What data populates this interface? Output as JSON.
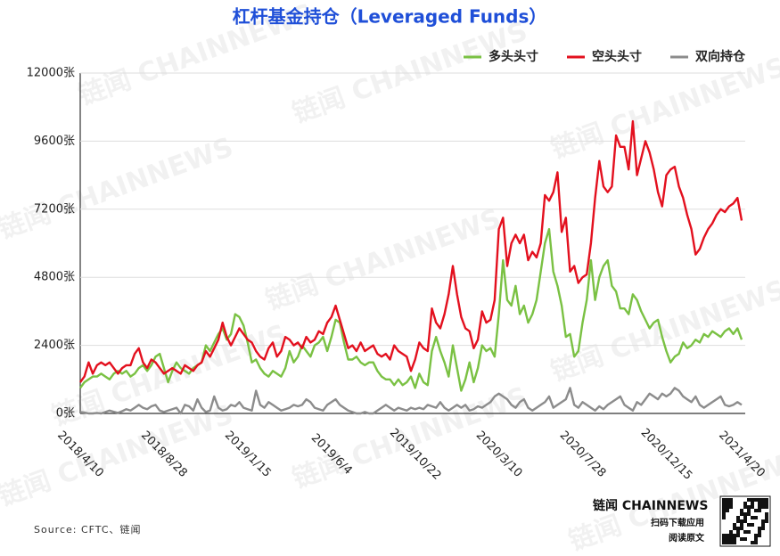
{
  "chart_data": {
    "type": "line",
    "title": "杠杆基金持仓（Leveraged Funds）",
    "source": "Source: CFTC、链闻",
    "brand": "链闻 CHAINNEWS",
    "brand_lines": [
      "扫码下载应用",
      "阅读原文"
    ],
    "watermark": "链闻 CHAINNEWS",
    "categories": [
      "2018/4/10",
      null,
      null,
      null,
      null,
      null,
      null,
      null,
      null,
      null,
      null,
      null,
      null,
      null,
      null,
      null,
      null,
      null,
      null,
      null,
      "2018/8/28",
      null,
      null,
      null,
      null,
      null,
      null,
      null,
      null,
      null,
      null,
      null,
      null,
      null,
      null,
      null,
      null,
      null,
      null,
      null,
      "2019/1/15",
      null,
      null,
      null,
      null,
      null,
      null,
      null,
      null,
      null,
      null,
      null,
      null,
      null,
      null,
      null,
      null,
      null,
      null,
      null,
      "2019/6/4",
      null,
      null,
      null,
      null,
      null,
      null,
      null,
      null,
      null,
      null,
      null,
      null,
      null,
      null,
      null,
      null,
      null,
      null,
      null,
      "2019/10/22",
      null,
      null,
      null,
      null,
      null,
      null,
      null,
      null,
      null,
      null,
      null,
      null,
      null,
      null,
      null,
      null,
      null,
      null,
      null,
      "2020/3/10",
      null,
      null,
      null,
      null,
      null,
      null,
      null,
      null,
      null,
      null,
      null,
      null,
      null,
      null,
      null,
      null,
      null,
      null,
      null,
      "2020/7/28",
      null,
      null,
      null,
      null,
      null,
      null,
      null,
      null,
      null,
      null,
      null,
      null,
      null,
      null,
      null,
      null,
      null,
      null,
      null,
      "2020/12/15",
      null,
      null,
      null,
      null,
      null,
      null,
      null,
      null,
      null,
      null,
      null,
      null,
      null,
      null,
      null,
      null,
      null,
      "2021/4/20"
    ],
    "series": [
      {
        "name": "多头头寸",
        "color": "#7ac143",
        "values": [
          900,
          1100,
          1200,
          1300,
          1300,
          1400,
          1300,
          1200,
          1400,
          1500,
          1400,
          1500,
          1300,
          1400,
          1600,
          1700,
          1500,
          1700,
          2000,
          2100,
          1600,
          1100,
          1500,
          1800,
          1600,
          1500,
          1400,
          1600,
          1700,
          1800,
          2400,
          2200,
          2500,
          2800,
          3000,
          2600,
          2800,
          3500,
          3400,
          3100,
          2500,
          1800,
          1900,
          1600,
          1400,
          1300,
          1500,
          1400,
          1300,
          1600,
          2200,
          1800,
          2000,
          2400,
          2200,
          2000,
          2400,
          2500,
          2700,
          2200,
          2700,
          3300,
          3200,
          2500,
          1900,
          1900,
          2000,
          1800,
          1700,
          1800,
          1800,
          1500,
          1300,
          1200,
          1200,
          1000,
          1200,
          1000,
          1100,
          1300,
          900,
          1400,
          1100,
          1000,
          2200,
          2700,
          2200,
          1800,
          1300,
          2400,
          1600,
          800,
          1200,
          1800,
          1100,
          1600,
          2400,
          2200,
          2300,
          2000,
          3500,
          5400,
          4000,
          3800,
          4500,
          3500,
          3800,
          3200,
          3500,
          4000,
          5000,
          6000,
          6500,
          5000,
          4500,
          3800,
          2700,
          2800,
          2000,
          2200,
          3200,
          4000,
          5400,
          4000,
          4800,
          5200,
          5400,
          4500,
          4300,
          3700,
          3700,
          3500,
          4200,
          4000,
          3600,
          3300,
          3000,
          3200,
          3300,
          2700,
          2200,
          1800,
          2000,
          2100,
          2500,
          2300,
          2400,
          2600,
          2500,
          2800,
          2700,
          2900,
          2800,
          2700,
          2900,
          3000,
          2800,
          3000,
          2600
        ]
      },
      {
        "name": "空头头寸",
        "color": "#e3101e",
        "values": [
          1100,
          1300,
          1800,
          1400,
          1700,
          1800,
          1700,
          1800,
          1600,
          1400,
          1600,
          1700,
          1700,
          2100,
          2300,
          1800,
          1600,
          1900,
          1800,
          1600,
          1400,
          1500,
          1600,
          1500,
          1400,
          1700,
          1600,
          1500,
          1700,
          1800,
          2200,
          2000,
          2300,
          2600,
          3200,
          2700,
          2400,
          2700,
          3000,
          2800,
          2600,
          2500,
          2200,
          2000,
          1900,
          2300,
          2500,
          2000,
          2200,
          2700,
          2600,
          2400,
          2500,
          2300,
          2700,
          2500,
          2600,
          2900,
          2800,
          3200,
          3400,
          3800,
          3300,
          2800,
          2300,
          2400,
          2200,
          2500,
          2200,
          2300,
          2400,
          2100,
          2000,
          2100,
          1900,
          2400,
          2200,
          2100,
          2000,
          1500,
          1900,
          2500,
          2300,
          2200,
          3700,
          3200,
          3000,
          3500,
          4200,
          5200,
          4200,
          3400,
          3000,
          2900,
          2300,
          2600,
          3600,
          3200,
          3300,
          4000,
          6500,
          6900,
          5200,
          6000,
          6300,
          6000,
          6300,
          5400,
          5700,
          5500,
          6000,
          7700,
          7500,
          7800,
          8500,
          6400,
          6900,
          5000,
          5200,
          4600,
          4800,
          4900,
          6000,
          7600,
          8900,
          8000,
          7800,
          8000,
          9800,
          9400,
          9400,
          8600,
          10300,
          8400,
          9000,
          9600,
          9200,
          8600,
          7800,
          7300,
          8400,
          8600,
          8700,
          8000,
          7600,
          7000,
          6500,
          5600,
          5800,
          6200,
          6500,
          6700,
          7000,
          7200,
          7100,
          7300,
          7400,
          7600,
          6800
        ]
      },
      {
        "name": "双向持仓",
        "color": "#8c8c8c",
        "values": [
          50,
          30,
          0,
          0,
          20,
          0,
          50,
          100,
          60,
          20,
          80,
          150,
          100,
          200,
          300,
          200,
          150,
          250,
          300,
          100,
          50,
          100,
          150,
          200,
          0,
          300,
          250,
          100,
          500,
          200,
          50,
          100,
          600,
          200,
          100,
          150,
          300,
          250,
          400,
          200,
          150,
          100,
          800,
          300,
          200,
          400,
          300,
          200,
          100,
          150,
          200,
          300,
          250,
          300,
          500,
          400,
          200,
          150,
          100,
          300,
          400,
          500,
          300,
          200,
          100,
          50,
          0,
          0,
          50,
          0,
          0,
          100,
          200,
          300,
          200,
          100,
          200,
          150,
          100,
          200,
          150,
          200,
          150,
          300,
          250,
          200,
          400,
          200,
          100,
          200,
          300,
          200,
          300,
          100,
          150,
          250,
          200,
          300,
          400,
          600,
          700,
          600,
          500,
          300,
          200,
          400,
          500,
          200,
          100,
          200,
          300,
          400,
          600,
          200,
          300,
          400,
          500,
          900,
          300,
          200,
          400,
          300,
          200,
          100,
          250,
          150,
          300,
          400,
          500,
          600,
          300,
          200,
          100,
          400,
          300,
          500,
          700,
          600,
          500,
          700,
          600,
          700,
          900,
          800,
          600,
          500,
          400,
          600,
          300,
          200,
          300,
          400,
          500,
          600,
          300,
          250,
          300,
          400,
          300
        ]
      }
    ],
    "ylim": [
      0,
      12000
    ],
    "yticks": [
      {
        "value": 0,
        "label": "0张"
      },
      {
        "value": 2400,
        "label": "2400张"
      },
      {
        "value": 4800,
        "label": "4800张"
      },
      {
        "value": 7200,
        "label": "7200张"
      },
      {
        "value": 9600,
        "label": "9600张"
      },
      {
        "value": 12000,
        "label": "12000张"
      }
    ],
    "grid": true
  }
}
